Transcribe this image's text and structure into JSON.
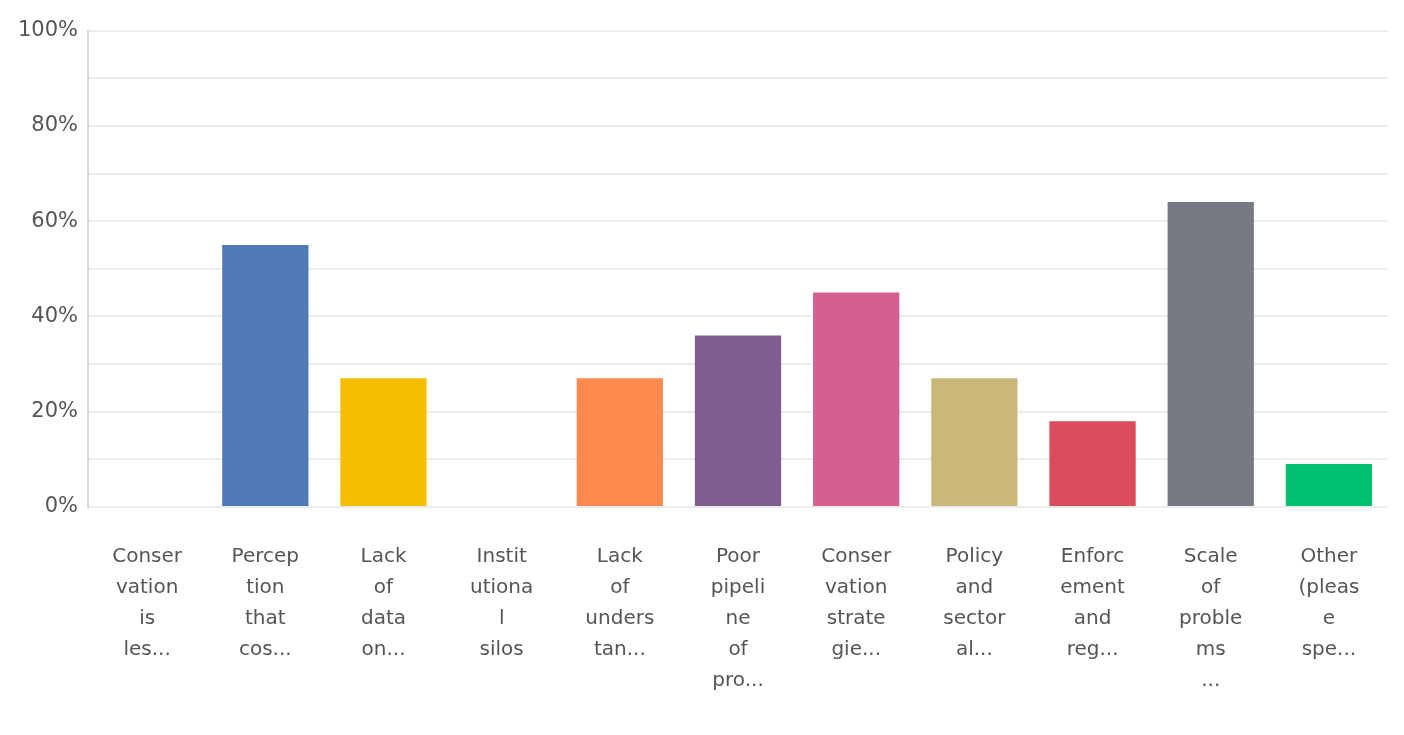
{
  "chart_data": {
    "type": "bar",
    "categories": [
      "Conser\nvation\nis\nles...",
      "Percep\ntion\nthat\ncos...",
      "Lack\nof\ndata\non...",
      "Instit\nutiona\nl\nsilos",
      "Lack\nof\nunders\ntan...",
      "Poor\npipeli\nne\nof\npro...",
      "Conser\nvation\nstrate\ngie...",
      "Policy\nand\nsector\nal...",
      "Enforc\nement\nand\nreg...",
      "Scale\nof\nproble\nms\n...",
      "Other\n(pleas\ne\nspe..."
    ],
    "values": [
      0,
      55,
      27,
      0,
      27,
      36,
      45,
      27,
      18,
      64,
      9
    ],
    "colors": [
      null,
      "#4f7ab5",
      "#f6be00",
      null,
      "#fe8a4f",
      "#7d5d8f",
      "#d55f8e",
      "#c9b87a",
      "#dc4b5c",
      "#767b83",
      "#00bf6f"
    ],
    "ylim": [
      0,
      100
    ],
    "yticks": [
      {
        "value": 0,
        "label": "0%"
      },
      {
        "value": 10,
        "label": null
      },
      {
        "value": 20,
        "label": "20%"
      },
      {
        "value": 30,
        "label": null
      },
      {
        "value": 40,
        "label": "40%"
      },
      {
        "value": 50,
        "label": null
      },
      {
        "value": 60,
        "label": "60%"
      },
      {
        "value": 70,
        "label": null
      },
      {
        "value": 80,
        "label": "80%"
      },
      {
        "value": 90,
        "label": null
      },
      {
        "value": 100,
        "label": "100%"
      }
    ],
    "grid": "y"
  }
}
